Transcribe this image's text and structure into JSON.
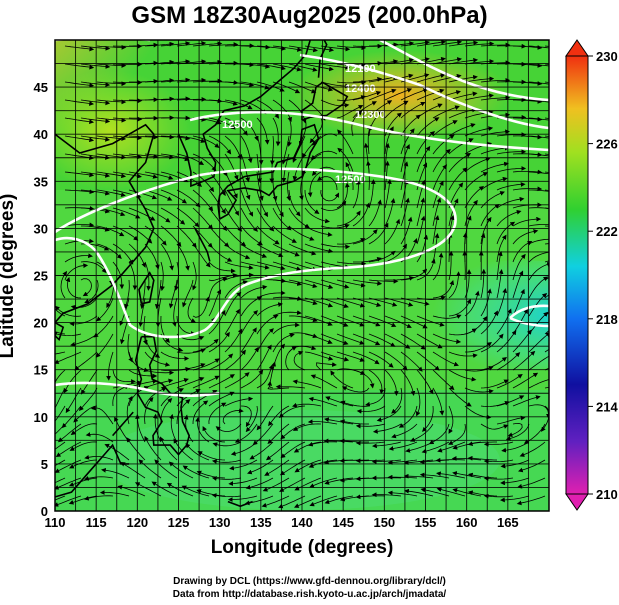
{
  "title": "GSM 18Z30Aug2025 (200.0hPa)",
  "xlabel": "Longitude (degrees)",
  "ylabel": "Latitude (degrees)",
  "credit_line1": "Drawing by DCL (https://www.gfd-dennou.org/library/dcl/)",
  "credit_line2": "Data from http://database.rish.kyoto-u.ac.jp/arch/jmadata/",
  "map": {
    "lon_range": [
      110,
      170
    ],
    "lat_range": [
      0,
      50
    ],
    "lon_ticks": [
      "110",
      "115",
      "120",
      "125",
      "130",
      "135",
      "140",
      "145",
      "150",
      "155",
      "160",
      "165"
    ],
    "lat_ticks": [
      "0",
      "5",
      "10",
      "15",
      "20",
      "25",
      "30",
      "35",
      "40",
      "45"
    ],
    "variable_colors": {
      "low": "#e020b0",
      "cold": "#1010a0",
      "cool": "#00b0ff",
      "mid": "#30d030",
      "warm": "#f0e020",
      "hot": "#ff3010"
    }
  },
  "colorbar": {
    "ticks": [
      "230",
      "226",
      "222",
      "218",
      "214",
      "210"
    ],
    "range": [
      210,
      230
    ]
  },
  "contour_labels": [
    "12100",
    "12400",
    "12300",
    "12500",
    "12500"
  ]
}
